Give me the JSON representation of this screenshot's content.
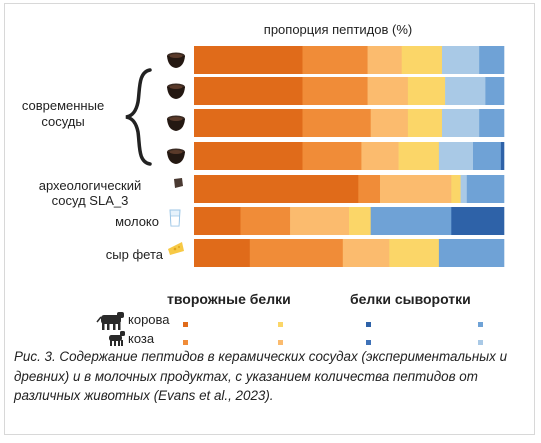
{
  "chart_data": {
    "type": "bar",
    "orientation": "horizontal",
    "stacked": true,
    "normalized": true,
    "title": "пропорция пептидов (%)",
    "unit": "%",
    "group_label": "современные сосуды",
    "rows": [
      {
        "label": "",
        "icon": "modern-pot-icon",
        "group": "modern",
        "values": [
          35,
          21,
          11,
          13,
          12,
          8,
          0
        ]
      },
      {
        "label": "",
        "icon": "modern-pot-icon",
        "group": "modern",
        "values": [
          35,
          21,
          13,
          12,
          13,
          6,
          0
        ]
      },
      {
        "label": "",
        "icon": "modern-pot-icon",
        "group": "modern",
        "values": [
          35,
          22,
          12,
          11,
          12,
          8,
          0
        ]
      },
      {
        "label": "",
        "icon": "modern-pot-icon",
        "group": "modern",
        "values": [
          35,
          19,
          12,
          13,
          11,
          9,
          1
        ]
      },
      {
        "label": "археологический сосуд SLA_3",
        "icon": "archaeological-sherd-icon",
        "group": "archaeological",
        "values": [
          53,
          7,
          23,
          3,
          2,
          12,
          0
        ]
      },
      {
        "label": "молоко",
        "icon": "milk-glass-icon",
        "group": "product",
        "values": [
          15,
          16,
          19,
          7,
          0,
          26,
          17
        ]
      },
      {
        "label": "сыр фета",
        "icon": "feta-cheese-icon",
        "group": "product",
        "values": [
          18,
          30,
          15,
          16,
          0,
          21,
          0
        ]
      }
    ],
    "segments": [
      {
        "protein": "casein",
        "animal": "cow",
        "color": "#e06b1a"
      },
      {
        "protein": "casein",
        "animal": "goat",
        "color": "#f08c38"
      },
      {
        "protein": "casein",
        "animal": "other",
        "color": "#fbbb6e"
      },
      {
        "protein": "casein",
        "animal": "cow-light",
        "color": "#fbd668"
      },
      {
        "protein": "whey",
        "animal": "other",
        "color": "#a9c9e6"
      },
      {
        "protein": "whey",
        "animal": "goat",
        "color": "#6fa2d6"
      },
      {
        "protein": "whey",
        "animal": "cow",
        "color": "#2e62a8"
      }
    ],
    "legend": {
      "columns": [
        "творожные белки",
        "белки сыворотки"
      ],
      "rows": [
        {
          "label": "корова",
          "icon": "cow-icon",
          "colors": [
            "#e06b1a",
            "#fbd668",
            "#2e62a8",
            "#6fa2d6"
          ]
        },
        {
          "label": "коза",
          "icon": "goat-icon",
          "colors": [
            "#f08c38",
            "#fbbb6e",
            "#3f72b8",
            "#a9c9e6"
          ]
        }
      ]
    },
    "xlim": [
      0,
      100
    ],
    "grid": false
  },
  "labels": {
    "title": "пропорция пептидов (%)",
    "group_label_line1": "современные",
    "group_label_line2": "сосуды",
    "arch_line1": "археологический",
    "arch_line2": "сосуд SLA_3",
    "milk": "молоко",
    "feta": "сыр фета",
    "legend_casein": "творожные белки",
    "legend_whey": "белки сыворотки",
    "legend_cow": "корова",
    "legend_goat": "коза"
  },
  "caption": {
    "prefix": "Рис. 3. ",
    "text": "Содержание пептидов в керамических сосудах (экспериментальных и древних) и в молочных продуктах, с указанием количества пептидов от различных животных (Evans et al., 2023)."
  }
}
